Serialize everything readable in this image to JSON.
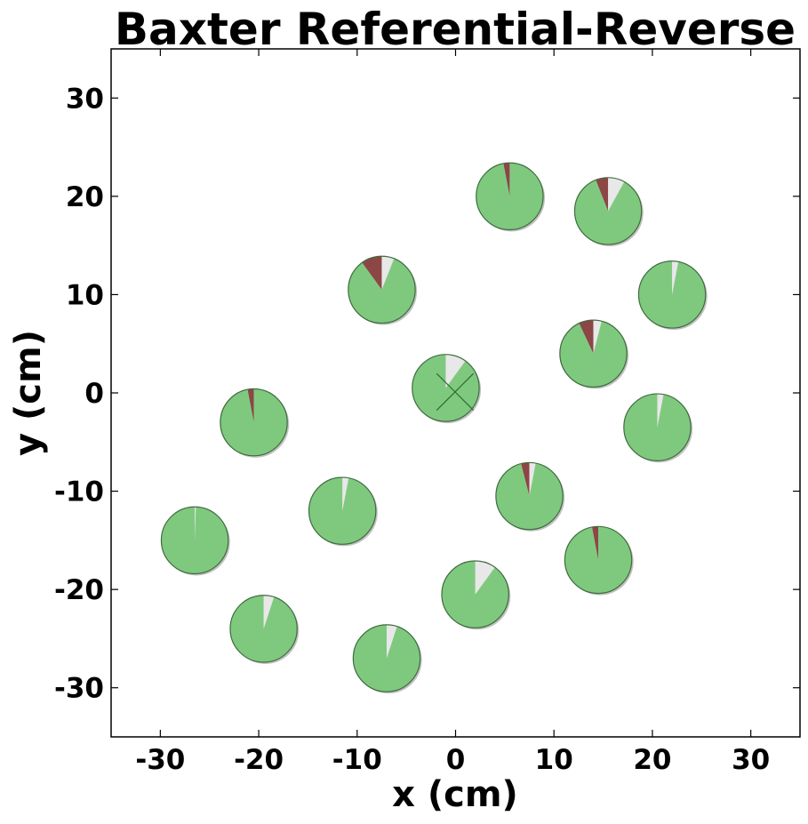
{
  "chart_data": {
    "type": "scatter",
    "title": "Baxter Referential-Reverse",
    "xlabel": "x (cm)",
    "ylabel": "y (cm)",
    "xlim": [
      -35,
      35
    ],
    "ylim": [
      -35,
      35
    ],
    "xticks": [
      -30,
      -20,
      -10,
      0,
      10,
      20,
      30
    ],
    "yticks": [
      -30,
      -20,
      -10,
      0,
      10,
      20,
      30
    ],
    "grid": false,
    "marker_radius": 3.4,
    "colors": {
      "success": "#7fc97f",
      "failure": "#8c4646",
      "other": "#e8e8e8",
      "edge": "#3f6b3f",
      "center_marker": "#2e6b2e"
    },
    "points": [
      {
        "x": 5.5,
        "y": 20.0,
        "success": 0.97,
        "failure": 0.03,
        "other": 0.0
      },
      {
        "x": 15.5,
        "y": 18.5,
        "success": 0.86,
        "failure": 0.06,
        "other": 0.08
      },
      {
        "x": -7.5,
        "y": 10.5,
        "success": 0.84,
        "failure": 0.1,
        "other": 0.06
      },
      {
        "x": 22.0,
        "y": 10.0,
        "success": 0.97,
        "failure": 0.0,
        "other": 0.03
      },
      {
        "x": 14.0,
        "y": 4.0,
        "success": 0.89,
        "failure": 0.07,
        "other": 0.04
      },
      {
        "x": -1.0,
        "y": 0.5,
        "success": 0.9,
        "failure": 0.0,
        "other": 0.1,
        "center_marker": true
      },
      {
        "x": -20.5,
        "y": -3.0,
        "success": 0.97,
        "failure": 0.03,
        "other": 0.0
      },
      {
        "x": 20.5,
        "y": -3.5,
        "success": 0.97,
        "failure": 0.0,
        "other": 0.03
      },
      {
        "x": -11.5,
        "y": -12.0,
        "success": 0.97,
        "failure": 0.0,
        "other": 0.03
      },
      {
        "x": 7.5,
        "y": -10.5,
        "success": 0.93,
        "failure": 0.04,
        "other": 0.03
      },
      {
        "x": -26.5,
        "y": -15.0,
        "success": 0.995,
        "failure": 0.0,
        "other": 0.005
      },
      {
        "x": 14.5,
        "y": -17.0,
        "success": 0.97,
        "failure": 0.03,
        "other": 0.0
      },
      {
        "x": 2.0,
        "y": -20.5,
        "success": 0.9,
        "failure": 0.0,
        "other": 0.1
      },
      {
        "x": -19.5,
        "y": -24.0,
        "success": 0.95,
        "failure": 0.0,
        "other": 0.05
      },
      {
        "x": -7.0,
        "y": -27.0,
        "success": 0.95,
        "failure": 0.0,
        "other": 0.05
      }
    ]
  }
}
